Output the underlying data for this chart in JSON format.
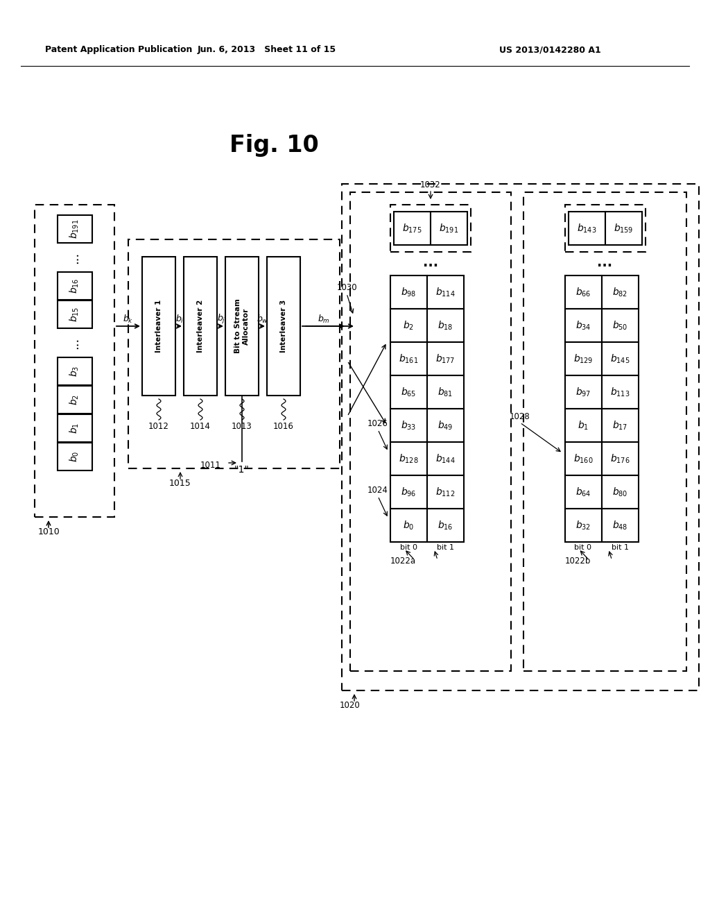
{
  "header_left": "Patent Application Publication",
  "header_mid": "Jun. 6, 2013   Sheet 11 of 15",
  "header_right": "US 2013/0142280 A1",
  "fig_label": "Fig. 10",
  "bg_color": "#ffffff",
  "input_cells_top_to_bottom": [
    [
      "$b_{191}$",
      true
    ],
    [
      "...",
      false
    ],
    [
      "$b_{16}$",
      true
    ],
    [
      "$b_{15}$",
      true
    ],
    [
      "...",
      false
    ],
    [
      "$b_3$",
      true
    ],
    [
      "$b_2$",
      true
    ],
    [
      "$b_1$",
      true
    ],
    [
      "$b_0$",
      true
    ]
  ],
  "interleaver_labels": [
    "Interleaver 1",
    "Interleaver 2",
    "Bit to Stream\nAllocator",
    "Interleaver 3"
  ],
  "interleaver_ids": [
    "1012",
    "1014",
    "1013",
    "1016"
  ],
  "ant1_col_bit0": [
    "$b_0$",
    "$b_{96}$",
    "$b_{33}$",
    "$b_{65}$",
    "$b_{161}$",
    "$b_2$",
    "$b_{128}$",
    "$b_{96}$"
  ],
  "ant1_col_bit1": [
    "$b_{16}$",
    "$b_{112}$",
    "$b_{49}$",
    "$b_{81}$",
    "$b_{177}$",
    "$b_{18}$",
    "$b_{144}$",
    "$b_{112}$"
  ],
  "ant1_rows_top_to_bottom_bit0": [
    "$b_{98}$",
    "$b_2$",
    "$b_{161}$",
    "$b_{65}$",
    "$b_{33}$",
    "$b_{128}$",
    "$b_{96}$",
    "$b_0$"
  ],
  "ant1_rows_top_to_bottom_bit1": [
    "$b_{114}$",
    "$b_{18}$",
    "$b_{177}$",
    "$b_{81}$",
    "$b_{49}$",
    "$b_{144}$",
    "$b_{112}$",
    "$b_{16}$"
  ],
  "ant2_rows_top_to_bottom_bit0": [
    "$b_{66}$",
    "$b_{34}$",
    "$b_{129}$",
    "$b_{97}$",
    "$b_1$",
    "$b_{160}$",
    "$b_{64}$",
    "$b_{32}$"
  ],
  "ant2_rows_top_to_bottom_bit1": [
    "$b_{82}$",
    "$b_{50}$",
    "$b_{145}$",
    "$b_{113}$",
    "$b_{17}$",
    "$b_{176}$",
    "$b_{80}$",
    "$b_{48}$"
  ]
}
